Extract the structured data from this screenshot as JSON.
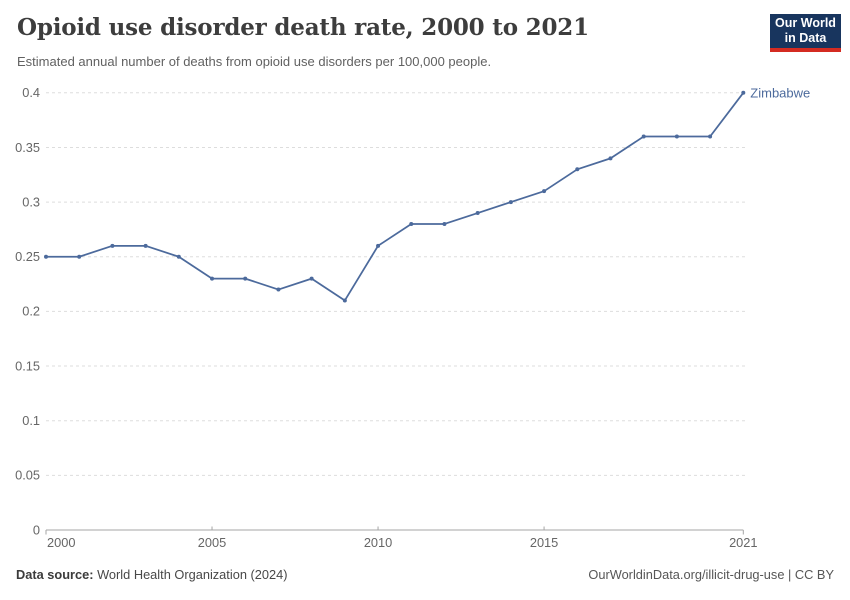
{
  "header": {
    "title": "Opioid use disorder death rate, 2000 to 2021",
    "subtitle": "Estimated annual number of deaths from opioid use disorders per 100,000 people.",
    "logo": {
      "line1": "Our World",
      "line2": "in Data"
    }
  },
  "chart_data": {
    "type": "line",
    "title": "Opioid use disorder death rate, 2000 to 2021",
    "ylabel": "",
    "xlabel": "",
    "x": [
      2000,
      2001,
      2002,
      2003,
      2004,
      2005,
      2006,
      2007,
      2008,
      2009,
      2010,
      2011,
      2012,
      2013,
      2014,
      2015,
      2016,
      2017,
      2018,
      2019,
      2020,
      2021
    ],
    "series": [
      {
        "name": "Zimbabwe",
        "color": "#4C6A9C",
        "values": [
          0.25,
          0.25,
          0.26,
          0.26,
          0.25,
          0.23,
          0.23,
          0.22,
          0.23,
          0.21,
          0.26,
          0.28,
          0.28,
          0.29,
          0.3,
          0.31,
          0.33,
          0.34,
          0.36,
          0.36,
          0.36,
          0.4
        ]
      }
    ],
    "xlim": [
      2000,
      2021
    ],
    "ylim": [
      0,
      0.4
    ],
    "xticks": [
      2000,
      2005,
      2010,
      2015,
      2021
    ],
    "yticks": [
      {
        "value": 0,
        "label": "0"
      },
      {
        "value": 0.05,
        "label": "0.05"
      },
      {
        "value": 0.1,
        "label": "0.1"
      },
      {
        "value": 0.15,
        "label": "0.15"
      },
      {
        "value": 0.2,
        "label": "0.2"
      },
      {
        "value": 0.25,
        "label": "0.25"
      },
      {
        "value": 0.3,
        "label": "0.3"
      },
      {
        "value": 0.35,
        "label": "0.35"
      },
      {
        "value": 0.4,
        "label": "0.4"
      }
    ],
    "grid": "horizontal-dashed",
    "legend": "end-of-line-label"
  },
  "footer": {
    "source_label": "Data source:",
    "source_value": " World Health Organization (2024)",
    "link": "OurWorldinData.org/illicit-drug-use | CC BY"
  },
  "colors": {
    "series": "#4C6A9C",
    "grid": "#dddddd",
    "axis": "#a5a5a5",
    "tick_label": "#666666",
    "logo_bg": "#18355E",
    "logo_accent": "#D42B21"
  }
}
